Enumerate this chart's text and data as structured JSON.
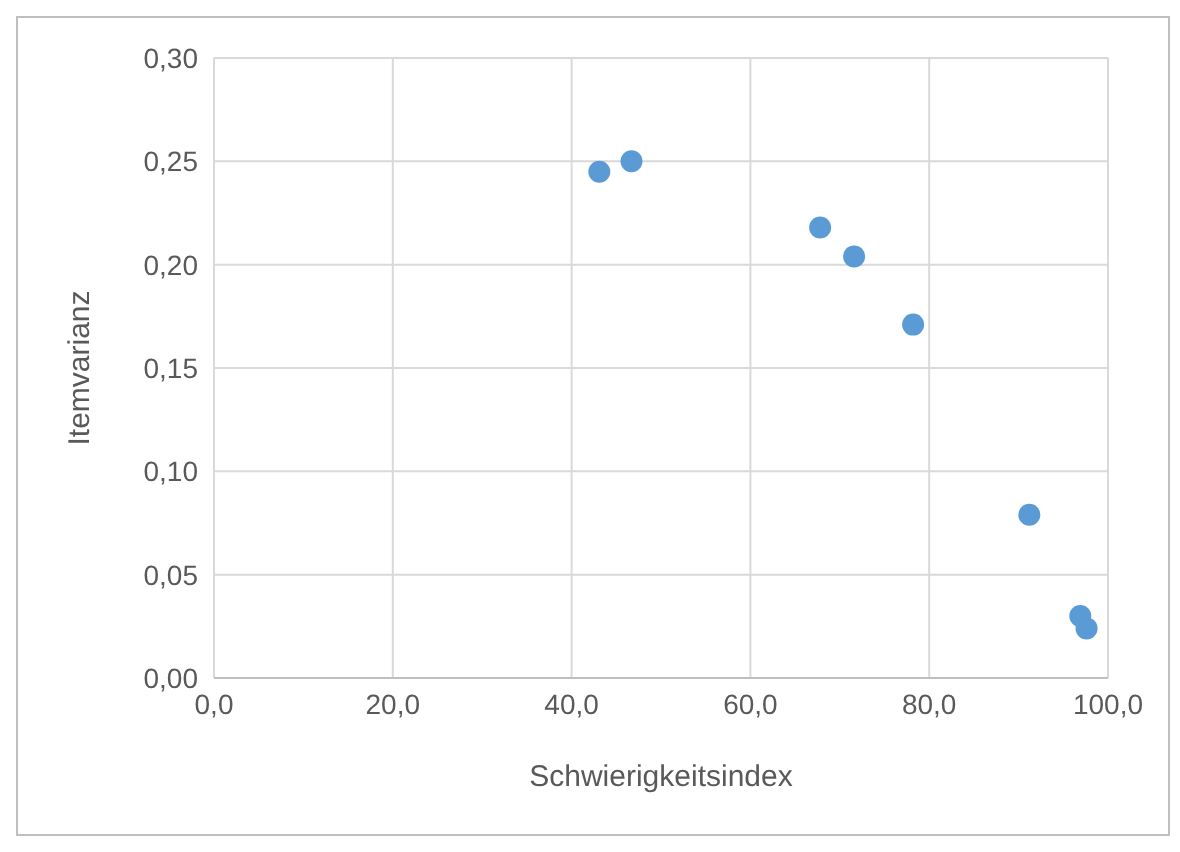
{
  "chart_data": {
    "type": "scatter",
    "xlabel": "Schwierigkeitsindex",
    "ylabel": "Itemvarianz",
    "x": [
      43.1,
      46.7,
      67.8,
      71.6,
      78.2,
      91.2,
      96.9,
      97.6
    ],
    "series": [
      {
        "color": "#5b9bd5",
        "values": [
          0.245,
          0.25,
          0.218,
          0.204,
          0.171,
          0.079,
          0.03,
          0.024
        ]
      }
    ],
    "xlim": [
      0,
      100
    ],
    "xticks": [
      {
        "value": 0,
        "label": "0,0"
      },
      {
        "value": 20,
        "label": "20,0"
      },
      {
        "value": 40,
        "label": "40,0"
      },
      {
        "value": 60,
        "label": "60,0"
      },
      {
        "value": 80,
        "label": "80,0"
      },
      {
        "value": 100,
        "label": "100,0"
      }
    ],
    "ylim": [
      0,
      0.3
    ],
    "yticks": [
      {
        "value": 0,
        "label": "0,00"
      },
      {
        "value": 0.05,
        "label": "0,05"
      },
      {
        "value": 0.1,
        "label": "0,10"
      },
      {
        "value": 0.15,
        "label": "0,15"
      },
      {
        "value": 0.2,
        "label": "0,20"
      },
      {
        "value": 0.25,
        "label": "0,25"
      },
      {
        "value": 0.3,
        "label": "0,30"
      }
    ],
    "grid": true,
    "marker": "circle"
  }
}
